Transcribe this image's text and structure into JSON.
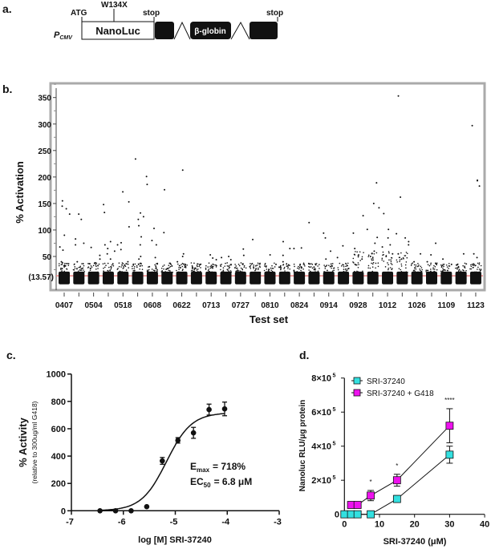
{
  "panel_labels": {
    "a": "a.",
    "b": "b.",
    "c": "c.",
    "d": "d."
  },
  "diagram": {
    "promoter": "P",
    "promoter_sub": "CMV",
    "atg": "ATG",
    "mutation": "W134X",
    "stop1": "stop",
    "stop2": "stop",
    "reporter": "NanoLuc",
    "intron_exon": "β-globin"
  },
  "chart_data": [
    {
      "panel": "b",
      "type": "scatter",
      "xlabel": "Test set",
      "ylabel": "% Activation",
      "ylim": [
        -5,
        360
      ],
      "yticks": [
        50,
        100,
        150,
        200,
        250,
        300,
        350
      ],
      "threshold": {
        "value": 13.57,
        "label": "(13.57)",
        "color": "#f08080"
      },
      "categories": [
        "0407",
        "",
        "0504",
        "",
        "0518",
        "",
        "0608",
        "",
        "0622",
        "",
        "0713",
        "",
        "0727",
        "",
        "0810",
        "",
        "0824",
        "",
        "0914",
        "",
        "0928",
        "",
        "1012",
        "",
        "1026",
        "",
        "1109",
        "",
        "1123"
      ],
      "bulk_range": [
        -4,
        20
      ],
      "outliers": [
        [
          155,
          145,
          140,
          130,
          90,
          68,
          62,
          40,
          38
        ],
        [
          130,
          120,
          83,
          75,
          72,
          40
        ],
        [
          67,
          52,
          45,
          38
        ],
        [
          148,
          133,
          78,
          72,
          65,
          60,
          55,
          45
        ],
        [
          172,
          153,
          106,
          76,
          72,
          63,
          40
        ],
        [
          234,
          132,
          125,
          120,
          108,
          87,
          72,
          50,
          45
        ],
        [
          201,
          186,
          103,
          80,
          72,
          48
        ],
        [
          176,
          95,
          32
        ],
        [
          213,
          55,
          50,
          40
        ],
        [
          35,
          30
        ],
        [
          53,
          47,
          44
        ],
        [
          50,
          48,
          44
        ],
        [
          64,
          52,
          35
        ],
        [
          82,
          30
        ],
        [
          53,
          35
        ],
        [
          78,
          65,
          52,
          40
        ],
        [
          66,
          65,
          35
        ],
        [
          114,
          30
        ],
        [
          94,
          85,
          60,
          45
        ],
        [
          70,
          48
        ],
        [
          127,
          94,
          65,
          45,
          35
        ],
        [
          189,
          150,
          142,
          101,
          86,
          75,
          60,
          50
        ],
        [
          131,
          101,
          85,
          72,
          68,
          55,
          50
        ],
        [
          353,
          162,
          93,
          85,
          78,
          72,
          55,
          45
        ],
        [
          55,
          40
        ],
        [
          75,
          53,
          40
        ],
        [
          45,
          35
        ],
        [
          55,
          35
        ],
        [
          297,
          194,
          193,
          183,
          55,
          48
        ]
      ]
    },
    {
      "panel": "c",
      "type": "line",
      "xlabel": "log [M] SRI-37240",
      "ylabel": "% Activity",
      "ylabel_sub": "(relative to 300ug/ml G418)",
      "xlim": [
        -7,
        -3
      ],
      "ylim": [
        0,
        1000
      ],
      "xticks": [
        -7,
        -6,
        -5,
        -4,
        -3
      ],
      "yticks": [
        0,
        200,
        400,
        600,
        800,
        1000
      ],
      "x": [
        -6.45,
        -6.15,
        -5.85,
        -5.55,
        -5.25,
        -4.95,
        -4.65,
        -4.35,
        -4.05
      ],
      "y": [
        0,
        0,
        0,
        30,
        365,
        515,
        570,
        740,
        745
      ],
      "err": [
        0,
        0,
        0,
        0,
        25,
        20,
        40,
        40,
        50
      ],
      "fit": {
        "bottom": 0,
        "top": 718,
        "logEC50": -5.17,
        "hill": 1.8
      },
      "annotations": {
        "emax_label": "E",
        "emax_sub": "max",
        "emax_value": "= 718%",
        "ec50_label": "EC",
        "ec50_sub": "50",
        "ec50_value": "= 6.8 μM"
      }
    },
    {
      "panel": "d",
      "type": "line",
      "xlabel": "SRI-37240 (μM)",
      "ylabel": "Nanoluc RLU/μg protein",
      "xlim": [
        0,
        40
      ],
      "ylim": [
        0,
        800000
      ],
      "xticks": [
        0,
        10,
        20,
        30,
        40
      ],
      "yticks": [
        0,
        200000,
        400000,
        600000,
        800000
      ],
      "ytick_labels": [
        "0",
        "2×10",
        "4×10",
        "6×10",
        "8×10"
      ],
      "ytick_exp": "5",
      "series": [
        {
          "name": "SRI-37240",
          "color": "#33e0e0",
          "x": [
            0,
            1.9,
            3.75,
            7.5,
            15,
            30
          ],
          "values": [
            0,
            0,
            0,
            0,
            90000,
            350000
          ],
          "err": [
            0,
            0,
            0,
            0,
            20000,
            50000
          ]
        },
        {
          "name": "SRI-37240 + G418",
          "color": "#ee11ee",
          "x": [
            1.9,
            3.75,
            7.5,
            15,
            30
          ],
          "values": [
            55000,
            55000,
            110000,
            200000,
            520000
          ],
          "err": [
            0,
            0,
            30000,
            35000,
            100000
          ]
        }
      ],
      "significance": [
        {
          "x": 7.5,
          "label": "*"
        },
        {
          "x": 15,
          "label": "*"
        },
        {
          "x": 30,
          "label": "****"
        }
      ]
    }
  ]
}
